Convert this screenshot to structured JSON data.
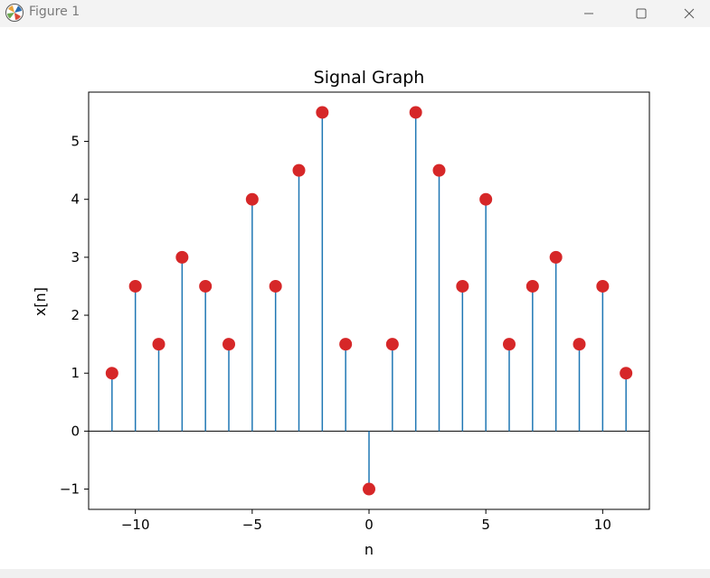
{
  "window": {
    "title": "Figure 1",
    "minimize_icon": "minimize-icon",
    "maximize_icon": "maximize-icon",
    "close_icon": "close-icon"
  },
  "colors": {
    "stem": "#1f77b4",
    "marker": "#d62728",
    "baseline": "#000000"
  },
  "chart_data": {
    "type": "scatter",
    "style": "stem",
    "title": "Signal Graph",
    "xlabel": "n",
    "ylabel": "x[n]",
    "xlim": [
      -12,
      12
    ],
    "ylim": [
      -1.35,
      5.85
    ],
    "xticks": [
      -10,
      -5,
      0,
      5,
      10
    ],
    "xtick_labels": [
      "−10",
      "−5",
      "0",
      "5",
      "10"
    ],
    "yticks": [
      -1,
      0,
      1,
      2,
      3,
      4,
      5
    ],
    "ytick_labels": [
      "−1",
      "0",
      "1",
      "2",
      "3",
      "4",
      "5"
    ],
    "grid": false,
    "legend": "none",
    "baseline": 0,
    "x": [
      -11,
      -10,
      -9,
      -8,
      -7,
      -6,
      -5,
      -4,
      -3,
      -2,
      -1,
      0,
      1,
      2,
      3,
      4,
      5,
      6,
      7,
      8,
      9,
      10,
      11
    ],
    "y": [
      1,
      2.5,
      1.5,
      3,
      2.5,
      1.5,
      4,
      2.5,
      4.5,
      5.5,
      1.5,
      -1,
      1.5,
      5.5,
      4.5,
      2.5,
      4,
      1.5,
      2.5,
      3,
      1.5,
      2.5,
      1
    ]
  }
}
